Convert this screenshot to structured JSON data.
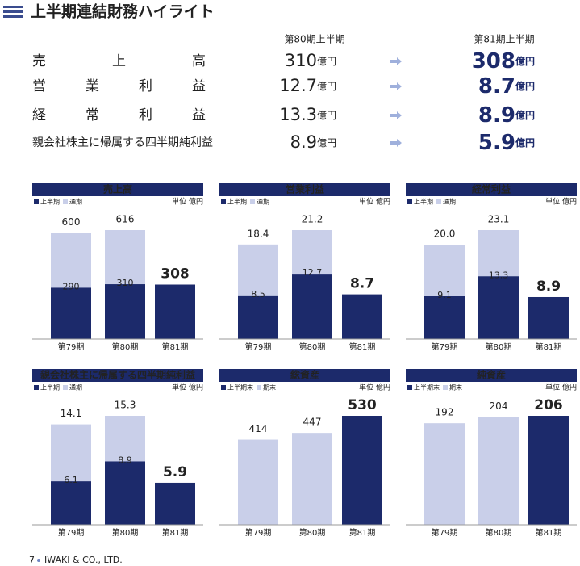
{
  "header": {
    "title": "上半期連結財務ハイライト"
  },
  "summary": {
    "columns": [
      "第80期上半期",
      "第81期上半期"
    ],
    "unit": "億円",
    "rows": [
      {
        "label": "売上高",
        "prev": "310",
        "curr": "308"
      },
      {
        "label": "営業利益",
        "prev": "12.7",
        "curr": "8.7"
      },
      {
        "label": "経常利益",
        "prev": "13.3",
        "curr": "8.9"
      },
      {
        "label": "親会社株主に帰属する四半期純利益",
        "prev": "8.9",
        "curr": "5.9"
      }
    ]
  },
  "charts": [
    {
      "title": "売上高",
      "unit_label": "単位 億円",
      "categories": [
        "第79期",
        "第80期",
        "第81期"
      ],
      "series": [
        {
          "name": "上半期",
          "color": "#1c2a6b",
          "values": [
            290,
            310,
            308
          ]
        },
        {
          "name": "通期",
          "color": "#c9cfe9",
          "values": [
            600,
            616,
            null
          ]
        }
      ]
    },
    {
      "title": "営業利益",
      "unit_label": "単位 億円",
      "categories": [
        "第79期",
        "第80期",
        "第81期"
      ],
      "series": [
        {
          "name": "上半期",
          "color": "#1c2a6b",
          "values": [
            8.5,
            12.7,
            8.7
          ]
        },
        {
          "name": "通期",
          "color": "#c9cfe9",
          "values": [
            18.4,
            21.2,
            null
          ]
        }
      ]
    },
    {
      "title": "経常利益",
      "unit_label": "単位 億円",
      "categories": [
        "第79期",
        "第80期",
        "第81期"
      ],
      "series": [
        {
          "name": "上半期",
          "color": "#1c2a6b",
          "values": [
            9.1,
            13.3,
            8.9
          ]
        },
        {
          "name": "通期",
          "color": "#c9cfe9",
          "values": [
            20.0,
            23.1,
            null
          ],
          "value_labels": [
            "20.0",
            "23.1",
            null
          ]
        }
      ]
    },
    {
      "title": "親会社株主に帰属する四半期純利益",
      "unit_label": "単位 億円",
      "categories": [
        "第79期",
        "第80期",
        "第81期"
      ],
      "series": [
        {
          "name": "上半期",
          "color": "#1c2a6b",
          "values": [
            6.1,
            8.9,
            5.9
          ]
        },
        {
          "name": "通期",
          "color": "#c9cfe9",
          "values": [
            14.1,
            15.3,
            null
          ]
        }
      ]
    },
    {
      "title": "総資産",
      "unit_label": "単位 億円",
      "categories": [
        "第79期",
        "第80期",
        "第81期"
      ],
      "series": [
        {
          "name": "上半期末",
          "color": "#1c2a6b",
          "values": [
            null,
            null,
            530
          ]
        },
        {
          "name": "期末",
          "color": "#c9cfe9",
          "values": [
            414,
            447,
            null
          ]
        }
      ]
    },
    {
      "title": "純資産",
      "unit_label": "単位 億円",
      "categories": [
        "第79期",
        "第80期",
        "第81期"
      ],
      "series": [
        {
          "name": "上半期末",
          "color": "#1c2a6b",
          "values": [
            null,
            null,
            206
          ]
        },
        {
          "name": "期末",
          "color": "#c9cfe9",
          "values": [
            192,
            204,
            null
          ]
        }
      ]
    }
  ],
  "footer": {
    "page": "7",
    "company": "IWAKI & CO., LTD."
  }
}
